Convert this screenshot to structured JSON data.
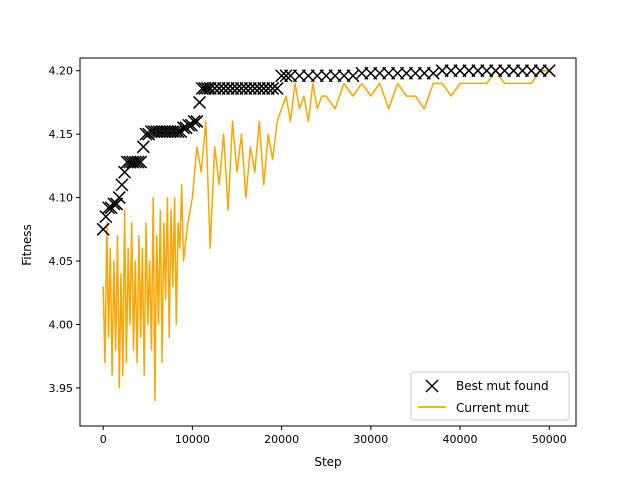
{
  "chart_data": {
    "type": "line",
    "title": "",
    "xlabel": "Step",
    "ylabel": "Fitness",
    "xlim": [
      -2600,
      53000
    ],
    "ylim": [
      3.92,
      4.21
    ],
    "x_ticks": [
      0,
      10000,
      20000,
      30000,
      40000,
      50000
    ],
    "x_tick_labels": [
      "0",
      "10000",
      "20000",
      "30000",
      "40000",
      "50000"
    ],
    "y_ticks": [
      3.95,
      4.0,
      4.05,
      4.1,
      4.15,
      4.2
    ],
    "y_tick_labels": [
      "3.95",
      "4.00",
      "4.05",
      "4.10",
      "4.15",
      "4.20"
    ],
    "grid": false,
    "legend": {
      "position": "lower right",
      "entries": [
        {
          "label": "Best mut found",
          "marker": "x",
          "color": "#000000"
        },
        {
          "label": "Current mut",
          "marker": "line",
          "color": "#ffa500"
        }
      ]
    },
    "series": [
      {
        "name": "Current mut",
        "style": "line",
        "color": "#ffa500",
        "envelope_note": "Noisy random-walk trace; x/y pairs approximated",
        "x": [
          0,
          200,
          400,
          600,
          800,
          1000,
          1200,
          1400,
          1600,
          1800,
          2000,
          2200,
          2400,
          2600,
          2800,
          3000,
          3200,
          3400,
          3600,
          3800,
          4000,
          4200,
          4400,
          4600,
          4800,
          5000,
          5200,
          5400,
          5600,
          5800,
          6000,
          6200,
          6400,
          6600,
          6800,
          7000,
          7200,
          7400,
          7600,
          7800,
          8000,
          8200,
          8400,
          8600,
          8800,
          9000,
          9500,
          10000,
          10500,
          11000,
          11500,
          12000,
          12500,
          13000,
          13500,
          14000,
          14500,
          15000,
          15500,
          16000,
          16500,
          17000,
          17500,
          18000,
          18500,
          19000,
          19500,
          20000,
          20500,
          21000,
          21500,
          22000,
          22500,
          23000,
          23500,
          24000,
          24500,
          25000,
          26000,
          27000,
          28000,
          29000,
          30000,
          31000,
          32000,
          33000,
          34000,
          35000,
          36000,
          37000,
          38000,
          39000,
          40000,
          41000,
          42000,
          43000,
          44000,
          45000,
          46000,
          47000,
          48000,
          49000,
          50000
        ],
        "y": [
          4.03,
          3.97,
          4.08,
          3.99,
          4.06,
          3.96,
          4.05,
          3.98,
          4.07,
          3.95,
          4.04,
          3.96,
          4.09,
          3.97,
          4.06,
          4.0,
          4.08,
          3.98,
          4.05,
          3.97,
          4.07,
          3.99,
          4.06,
          3.96,
          4.08,
          4.0,
          4.05,
          3.98,
          4.1,
          3.94,
          4.07,
          4.0,
          4.09,
          3.97,
          4.08,
          4.02,
          4.1,
          3.99,
          4.09,
          4.03,
          4.1,
          4.0,
          4.08,
          4.06,
          4.11,
          4.05,
          4.08,
          4.1,
          4.14,
          4.12,
          4.16,
          4.06,
          4.14,
          4.11,
          4.15,
          4.09,
          4.16,
          4.12,
          4.15,
          4.1,
          4.14,
          4.12,
          4.16,
          4.11,
          4.15,
          4.13,
          4.16,
          4.17,
          4.18,
          4.16,
          4.19,
          4.17,
          4.18,
          4.16,
          4.19,
          4.17,
          4.18,
          4.18,
          4.17,
          4.19,
          4.18,
          4.19,
          4.18,
          4.19,
          4.17,
          4.19,
          4.18,
          4.18,
          4.17,
          4.19,
          4.19,
          4.18,
          4.19,
          4.19,
          4.19,
          4.19,
          4.2,
          4.19,
          4.19,
          4.19,
          4.19,
          4.2,
          4.2
        ]
      },
      {
        "name": "Best mut found",
        "style": "markers",
        "marker": "x",
        "color": "#000000",
        "x": [
          0,
          300,
          600,
          900,
          1200,
          1500,
          1800,
          2100,
          2400,
          2700,
          3000,
          3300,
          3600,
          3900,
          4200,
          4500,
          4800,
          5100,
          5400,
          5700,
          6000,
          6300,
          6600,
          6900,
          7200,
          7500,
          7800,
          8100,
          8400,
          8700,
          9000,
          9300,
          9600,
          9900,
          10200,
          10500,
          10800,
          11100,
          11400,
          11700,
          12000,
          12500,
          13000,
          13500,
          14000,
          14500,
          15000,
          15500,
          16000,
          16500,
          17000,
          17500,
          18000,
          18500,
          19000,
          19500,
          20000,
          20500,
          21000,
          22000,
          23000,
          24000,
          25000,
          26000,
          27000,
          28000,
          29000,
          30000,
          31000,
          32000,
          33000,
          34000,
          35000,
          36000,
          37000,
          38000,
          39000,
          40000,
          41000,
          42000,
          43000,
          44000,
          45000,
          46000,
          47000,
          48000,
          49000,
          50000
        ],
        "y": [
          4.075,
          4.085,
          4.092,
          4.092,
          4.095,
          4.095,
          4.1,
          4.11,
          4.12,
          4.128,
          4.128,
          4.128,
          4.128,
          4.128,
          4.128,
          4.14,
          4.15,
          4.15,
          4.152,
          4.152,
          4.152,
          4.152,
          4.152,
          4.152,
          4.152,
          4.152,
          4.152,
          4.152,
          4.152,
          4.152,
          4.155,
          4.155,
          4.157,
          4.157,
          4.16,
          4.16,
          4.175,
          4.186,
          4.186,
          4.186,
          4.186,
          4.186,
          4.186,
          4.186,
          4.186,
          4.186,
          4.186,
          4.186,
          4.186,
          4.186,
          4.186,
          4.186,
          4.186,
          4.186,
          4.186,
          4.186,
          4.196,
          4.196,
          4.196,
          4.196,
          4.196,
          4.196,
          4.196,
          4.196,
          4.196,
          4.196,
          4.198,
          4.198,
          4.198,
          4.198,
          4.198,
          4.198,
          4.198,
          4.198,
          4.198,
          4.2,
          4.2,
          4.2,
          4.2,
          4.2,
          4.2,
          4.2,
          4.2,
          4.2,
          4.2,
          4.2,
          4.2,
          4.2
        ]
      }
    ]
  }
}
